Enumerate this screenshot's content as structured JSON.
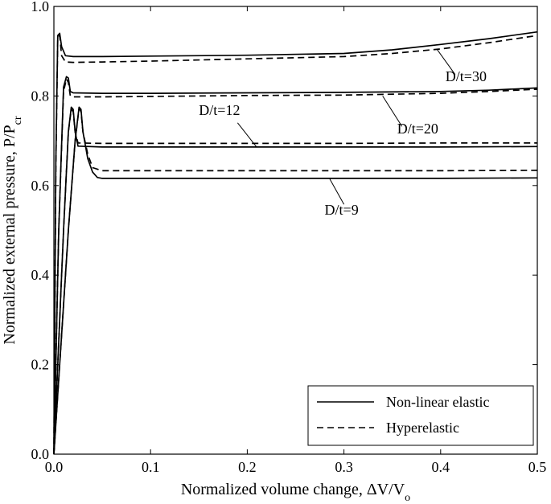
{
  "chart_data": {
    "type": "line",
    "xlabel": "Normalized volume change, ΔV/V",
    "xlabel_sub": "o",
    "ylabel": "Normalized external pressure, P/P",
    "ylabel_sub": "cr",
    "xlim": [
      0,
      0.5
    ],
    "ylim": [
      0,
      1.0
    ],
    "xticks": [
      0,
      0.1,
      0.2,
      0.3,
      0.4,
      0.5
    ],
    "xtick_labels": [
      "0.0",
      "0.1",
      "0.2",
      "0.3",
      "0.4",
      "0.5"
    ],
    "yticks": [
      0,
      0.2,
      0.4,
      0.6,
      0.8,
      1.0
    ],
    "ytick_labels": [
      "0.0",
      "0.2",
      "0.4",
      "0.6",
      "0.8",
      "1.0"
    ],
    "grid": false,
    "legend_position": "bottom-right",
    "legend": [
      {
        "label": "Non-linear elastic",
        "style": "solid"
      },
      {
        "label": "Hyperelastic",
        "style": "dashed"
      }
    ],
    "series": [
      {
        "group": "D/t=30",
        "style": "solid",
        "x": [
          0,
          0.002,
          0.004,
          0.006,
          0.008,
          0.012,
          0.02,
          0.05,
          0.1,
          0.2,
          0.3,
          0.35,
          0.4,
          0.45,
          0.5
        ],
        "y": [
          0,
          0.65,
          0.935,
          0.94,
          0.91,
          0.89,
          0.888,
          0.888,
          0.889,
          0.891,
          0.895,
          0.903,
          0.915,
          0.928,
          0.943
        ]
      },
      {
        "group": "D/t=30",
        "style": "dashed",
        "x": [
          0,
          0.002,
          0.004,
          0.006,
          0.008,
          0.012,
          0.02,
          0.05,
          0.1,
          0.2,
          0.3,
          0.35,
          0.4,
          0.45,
          0.5
        ],
        "y": [
          0,
          0.64,
          0.93,
          0.935,
          0.89,
          0.876,
          0.875,
          0.876,
          0.878,
          0.883,
          0.888,
          0.895,
          0.905,
          0.919,
          0.935
        ]
      },
      {
        "group": "D/t=20",
        "style": "solid",
        "x": [
          0,
          0.005,
          0.01,
          0.013,
          0.015,
          0.017,
          0.02,
          0.05,
          0.1,
          0.2,
          0.3,
          0.4,
          0.45,
          0.5
        ],
        "y": [
          0,
          0.5,
          0.82,
          0.843,
          0.84,
          0.81,
          0.807,
          0.806,
          0.806,
          0.807,
          0.808,
          0.81,
          0.813,
          0.818
        ]
      },
      {
        "group": "D/t=20",
        "style": "dashed",
        "x": [
          0,
          0.005,
          0.01,
          0.013,
          0.015,
          0.017,
          0.02,
          0.05,
          0.1,
          0.2,
          0.3,
          0.4,
          0.45,
          0.5
        ],
        "y": [
          0,
          0.5,
          0.81,
          0.838,
          0.83,
          0.8,
          0.798,
          0.798,
          0.799,
          0.801,
          0.802,
          0.806,
          0.81,
          0.815
        ]
      },
      {
        "group": "D/t=12",
        "style": "solid",
        "x": [
          0,
          0.01,
          0.015,
          0.018,
          0.02,
          0.022,
          0.025,
          0.05,
          0.1,
          0.2,
          0.3,
          0.4,
          0.5
        ],
        "y": [
          0,
          0.5,
          0.72,
          0.775,
          0.77,
          0.72,
          0.688,
          0.686,
          0.686,
          0.686,
          0.686,
          0.686,
          0.687
        ]
      },
      {
        "group": "D/t=12",
        "style": "dashed",
        "x": [
          0,
          0.01,
          0.015,
          0.018,
          0.02,
          0.022,
          0.025,
          0.05,
          0.1,
          0.2,
          0.3,
          0.4,
          0.5
        ],
        "y": [
          0,
          0.5,
          0.72,
          0.77,
          0.765,
          0.72,
          0.695,
          0.694,
          0.694,
          0.694,
          0.694,
          0.695,
          0.695
        ]
      },
      {
        "group": "D/t=9",
        "style": "solid",
        "x": [
          0,
          0.015,
          0.022,
          0.026,
          0.028,
          0.03,
          0.035,
          0.04,
          0.045,
          0.05,
          0.1,
          0.2,
          0.3,
          0.4,
          0.5
        ],
        "y": [
          0,
          0.5,
          0.7,
          0.775,
          0.77,
          0.72,
          0.66,
          0.63,
          0.618,
          0.616,
          0.616,
          0.616,
          0.616,
          0.616,
          0.617
        ]
      },
      {
        "group": "D/t=9",
        "style": "dashed",
        "x": [
          0,
          0.015,
          0.022,
          0.026,
          0.028,
          0.03,
          0.035,
          0.04,
          0.05,
          0.1,
          0.2,
          0.3,
          0.4,
          0.5
        ],
        "y": [
          0,
          0.5,
          0.7,
          0.772,
          0.765,
          0.72,
          0.67,
          0.64,
          0.633,
          0.633,
          0.633,
          0.633,
          0.633,
          0.634
        ]
      }
    ],
    "annotations": [
      {
        "text": "D/t=30",
        "x": 0.405,
        "y": 0.833,
        "leader_x": [
          0.415,
          0.396
        ],
        "leader_y": [
          0.848,
          0.905
        ]
      },
      {
        "text": "D/t=20",
        "x": 0.355,
        "y": 0.716,
        "leader_x": [
          0.36,
          0.34
        ],
        "leader_y": [
          0.732,
          0.8
        ]
      },
      {
        "text": "D/t=12",
        "x": 0.15,
        "y": 0.758,
        "leader_x": [
          0.19,
          0.21
        ],
        "leader_y": [
          0.74,
          0.685
        ]
      },
      {
        "text": "D/t=9",
        "x": 0.28,
        "y": 0.535,
        "leader_x": [
          0.3,
          0.285
        ],
        "leader_y": [
          0.558,
          0.616
        ]
      }
    ]
  }
}
